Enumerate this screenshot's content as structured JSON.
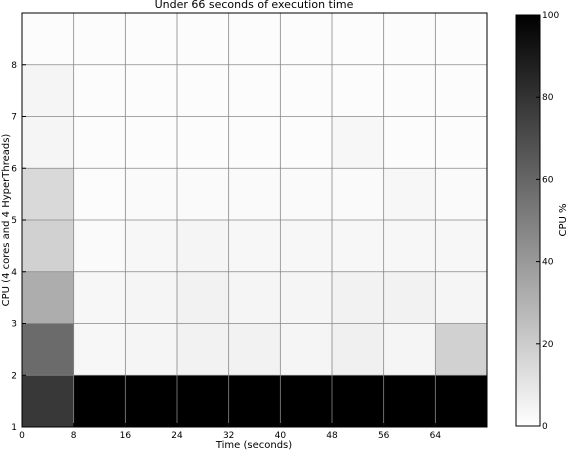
{
  "chart_data": {
    "type": "heatmap",
    "title": "Under 66 seconds of execution time",
    "xlabel": "Time (seconds)",
    "ylabel": "CPU (4 cores and 4 HyperThreads)",
    "colorbar_label": "CPU %",
    "colormap": "gray_r",
    "x_ticks": [
      0,
      8,
      16,
      24,
      32,
      40,
      48,
      56,
      64
    ],
    "y_ticks": [
      1,
      2,
      3,
      4,
      5,
      6,
      7,
      8
    ],
    "colorbar_ticks": [
      0,
      20,
      40,
      60,
      80,
      100
    ],
    "xlim": [
      0,
      72
    ],
    "ylim": [
      1,
      9
    ],
    "clim": [
      0,
      100
    ],
    "x_bin_edges": [
      0,
      8,
      16,
      24,
      32,
      40,
      48,
      56,
      64,
      72
    ],
    "y_bin_edges": [
      1,
      2,
      3,
      4,
      5,
      6,
      7,
      8,
      9
    ],
    "grid": true,
    "values": [
      [
        78,
        100,
        100,
        100,
        100,
        100,
        100,
        100,
        100
      ],
      [
        58,
        3,
        4,
        5,
        5,
        4,
        6,
        4,
        18
      ],
      [
        32,
        3,
        4,
        5,
        4,
        4,
        5,
        5,
        4
      ],
      [
        18,
        2,
        3,
        4,
        3,
        3,
        3,
        3,
        3
      ],
      [
        15,
        1,
        2,
        2,
        2,
        2,
        2,
        3,
        2
      ],
      [
        4,
        1,
        1,
        1,
        1,
        1,
        3,
        1,
        1
      ],
      [
        4,
        1,
        1,
        1,
        1,
        1,
        1,
        1,
        1
      ],
      [
        1,
        1,
        1,
        1,
        1,
        1,
        1,
        1,
        1
      ]
    ]
  }
}
